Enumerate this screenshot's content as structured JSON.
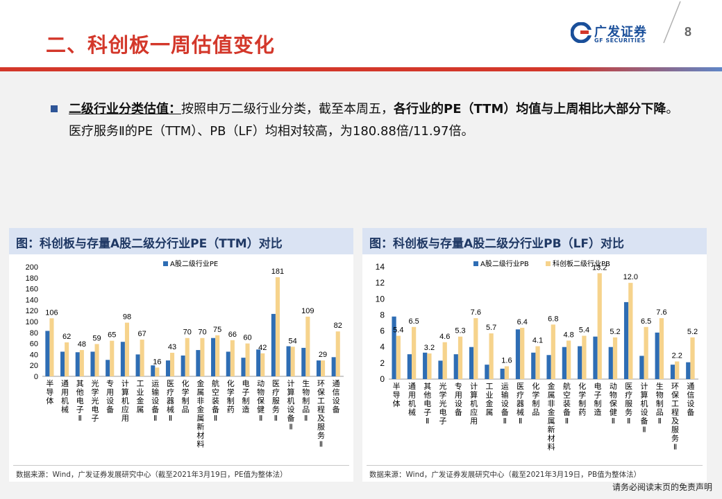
{
  "page": {
    "title": "二、科创板一周估值变化",
    "page_number": "8",
    "logo_cn": "广发证券",
    "logo_en": "GF SECURITIES",
    "disclaimer": "请务必阅读末页的免责声明"
  },
  "bullet": {
    "label": "二级行业分类估值：",
    "text1": "按照申万二级行业分类，截至本周五，",
    "bold": "各行业的PE（TTM）均值与上周相比大部分下降",
    "text2": "。医疗服务Ⅱ的PE（TTM）、PB（LF）均相对较高，为180.88倍/11.97倍。"
  },
  "colors": {
    "a_share": "#2e6db4",
    "star_market": "#f6d38c",
    "accent_red": "#d3372a",
    "header_bg": "#dae3f3",
    "header_text": "#1f3864"
  },
  "chart_data": [
    {
      "type": "bar",
      "title": "图：科创板与存量A股二级分行业PE（TTM）对比",
      "source": "数据来源：Wind，广发证券发展研究中心（截至2021年3月19日，PE值为整体法）",
      "categories": [
        "半导体",
        "通用机械",
        "其他电子Ⅱ",
        "光学光电子",
        "专用设备",
        "计算机应用",
        "工业金属",
        "运输设备Ⅱ",
        "医疗器械Ⅱ",
        "化学制品",
        "金属非金属新材料",
        "航空装备Ⅱ",
        "化学制药",
        "电子制造",
        "动物保健Ⅱ",
        "医疗服务Ⅱ",
        "计算机设备Ⅱ",
        "生物制品Ⅱ",
        "环保工程及服务Ⅱ",
        "通信设备"
      ],
      "ylim": [
        0,
        200
      ],
      "yticks": [
        0,
        20,
        40,
        60,
        80,
        100,
        120,
        140,
        160,
        180,
        200
      ],
      "legend_position": "top-left",
      "series": [
        {
          "name": "A股二级行业PE",
          "values": [
            83,
            45,
            44,
            45,
            30,
            63,
            40,
            20,
            29,
            38,
            48,
            70,
            45,
            34,
            49,
            114,
            55,
            52,
            29,
            35
          ]
        },
        {
          "name": "",
          "values": [
            106,
            62,
            48,
            59,
            65,
            98,
            67,
            16,
            43,
            70,
            70,
            75,
            66,
            60,
            42,
            181,
            54,
            109,
            29,
            82
          ]
        }
      ],
      "data_labels": [
        "106",
        "62",
        "48",
        "59",
        "65",
        "98",
        "67",
        "16",
        "43",
        "70",
        "70",
        "75",
        "66",
        "60",
        "42",
        "181",
        "54",
        "109",
        "29",
        "82"
      ]
    },
    {
      "type": "bar",
      "title": "图：科创板与存量A股二级分行业PB（LF）对比",
      "source": "数据来源：Wind，广发证券发展研究中心（截至2021年3月19日，PB值为整体法）",
      "categories": [
        "半导体",
        "通用机械",
        "其他电子Ⅱ",
        "光学光电子",
        "专用设备",
        "计算机应用",
        "工业金属",
        "运输设备Ⅱ",
        "医疗器械Ⅱ",
        "化学制品",
        "金属非金属新材料",
        "航空装备Ⅱ",
        "化学制药",
        "电子制造",
        "动物保健Ⅱ",
        "医疗服务Ⅱ",
        "计算机设备Ⅱ",
        "生物制品Ⅱ",
        "环保工程及服务Ⅱ",
        "通信设备"
      ],
      "ylim": [
        0,
        14
      ],
      "yticks": [
        0,
        2,
        4,
        6,
        8,
        10,
        12,
        14
      ],
      "legend_position": "top",
      "series": [
        {
          "name": "A股二级行业PB",
          "values": [
            7.8,
            3.1,
            3.3,
            2.3,
            3.1,
            4.0,
            1.8,
            1.3,
            6.2,
            3.3,
            3.0,
            4.0,
            4.1,
            5.3,
            4.0,
            9.6,
            2.9,
            5.8,
            1.8,
            2.1
          ]
        },
        {
          "name": "科创板二级行业PB",
          "values": [
            5.4,
            6.5,
            3.2,
            4.6,
            5.3,
            7.6,
            5.7,
            1.6,
            6.4,
            4.1,
            6.8,
            4.8,
            5.4,
            13.2,
            5.2,
            12.0,
            6.5,
            7.6,
            2.2,
            5.2
          ]
        }
      ],
      "data_labels": [
        "5.4",
        "6.5",
        "3.2",
        "4.6",
        "5.3",
        "7.6",
        "5.7",
        "1.6",
        "6.4",
        "4.1",
        "6.8",
        "4.8",
        "5.4",
        "13.2",
        "5.2",
        "12.0",
        "6.5",
        "7.6",
        "2.2",
        "5.2"
      ]
    }
  ]
}
